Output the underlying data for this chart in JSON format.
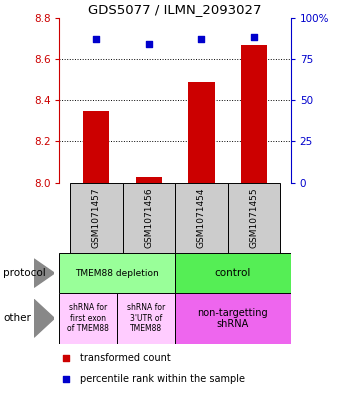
{
  "title": "GDS5077 / ILMN_2093027",
  "samples": [
    "GSM1071457",
    "GSM1071456",
    "GSM1071454",
    "GSM1071455"
  ],
  "bar_values": [
    8.35,
    8.03,
    8.49,
    8.67
  ],
  "dot_values": [
    87,
    84,
    87,
    88
  ],
  "ylim_left": [
    8.0,
    8.8
  ],
  "ylim_right": [
    0,
    100
  ],
  "yticks_left": [
    8.0,
    8.2,
    8.4,
    8.6,
    8.8
  ],
  "yticks_right": [
    0,
    25,
    50,
    75,
    100
  ],
  "ytick_labels_right": [
    "0",
    "25",
    "50",
    "75",
    "100%"
  ],
  "bar_color": "#cc0000",
  "dot_color": "#0000cc",
  "protocol_labels": [
    "TMEM88 depletion",
    "control"
  ],
  "protocol_colors": [
    "#99ff99",
    "#55ee55"
  ],
  "other_label1": "shRNA for\nfirst exon\nof TMEM88",
  "other_label2": "shRNA for\n3'UTR of\nTMEM88",
  "other_label3": "non-targetting\nshRNA",
  "other_color12": "#ffccff",
  "other_color3": "#ee66ee",
  "legend_bar_label": "transformed count",
  "legend_dot_label": "percentile rank within the sample",
  "row_label_protocol": "protocol",
  "row_label_other": "other",
  "background_color": "#ffffff",
  "axis_color_left": "#cc0000",
  "axis_color_right": "#0000cc",
  "sample_bg": "#cccccc",
  "grid_lines": [
    8.2,
    8.4,
    8.6
  ]
}
